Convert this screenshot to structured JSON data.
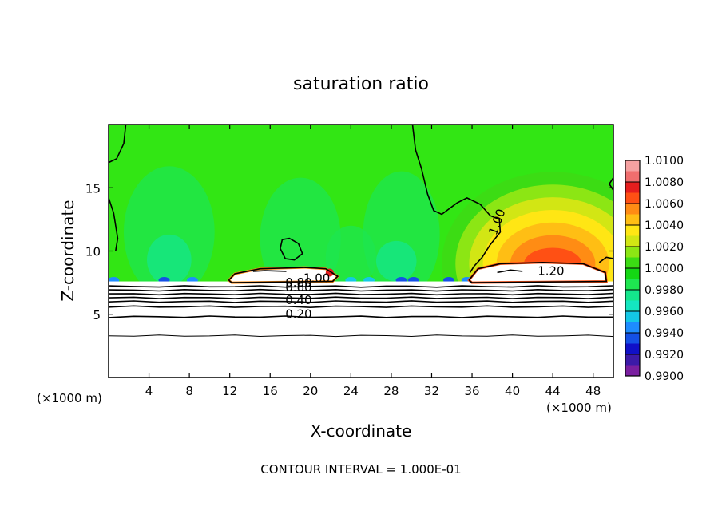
{
  "chart_data": {
    "type": "heatmap",
    "title": "saturation ratio",
    "xlabel": "X-coordinate",
    "ylabel": "Z-coordinate",
    "x_unit_left": "(×1000 m)",
    "x_unit_right": "(×1000 m)",
    "footer": "CONTOUR INTERVAL = 1.000E-01",
    "xlim": [
      0,
      50
    ],
    "ylim": [
      0,
      20
    ],
    "xticks": [
      4,
      8,
      12,
      16,
      20,
      24,
      28,
      32,
      36,
      40,
      44,
      48
    ],
    "yticks": [
      5,
      10,
      15
    ],
    "colorbar": {
      "min": 0.99,
      "max": 1.01,
      "labels": [
        "1.0100",
        "1.0080",
        "1.0060",
        "1.0040",
        "1.0020",
        "1.0000",
        "0.9980",
        "0.9960",
        "0.9940",
        "0.9920",
        "0.9900"
      ],
      "bands": [
        {
          "lo": 0.99,
          "hi": 0.991,
          "color": "#7a1fa0"
        },
        {
          "lo": 0.991,
          "hi": 0.992,
          "color": "#3c1aa8"
        },
        {
          "lo": 0.992,
          "hi": 0.993,
          "color": "#1010c8"
        },
        {
          "lo": 0.993,
          "hi": 0.994,
          "color": "#1450e6"
        },
        {
          "lo": 0.994,
          "hi": 0.995,
          "color": "#1e8cff"
        },
        {
          "lo": 0.995,
          "hi": 0.996,
          "color": "#14c8e6"
        },
        {
          "lo": 0.996,
          "hi": 0.997,
          "color": "#14e6c0"
        },
        {
          "lo": 0.997,
          "hi": 0.998,
          "color": "#14e68c"
        },
        {
          "lo": 0.998,
          "hi": 0.999,
          "color": "#1ee650"
        },
        {
          "lo": 0.999,
          "hi": 1.0,
          "color": "#14d714"
        },
        {
          "lo": 1.0,
          "hi": 1.001,
          "color": "#3cdc14"
        },
        {
          "lo": 1.001,
          "hi": 1.002,
          "color": "#8ce614"
        },
        {
          "lo": 1.002,
          "hi": 1.003,
          "color": "#d2e614"
        },
        {
          "lo": 1.003,
          "hi": 1.004,
          "color": "#ffe614"
        },
        {
          "lo": 1.004,
          "hi": 1.005,
          "color": "#ffbe14"
        },
        {
          "lo": 1.005,
          "hi": 1.006,
          "color": "#ff8c14"
        },
        {
          "lo": 1.006,
          "hi": 1.007,
          "color": "#ff5014"
        },
        {
          "lo": 1.007,
          "hi": 1.008,
          "color": "#e61e1e"
        },
        {
          "lo": 1.008,
          "hi": 1.009,
          "color": "#f06e6e"
        },
        {
          "lo": 1.009,
          "hi": 1.01,
          "color": "#f5a0a0"
        }
      ]
    },
    "contour_labels": [
      "1.00",
      "1.20",
      "0.80",
      "0.60",
      "0.40",
      "0.20",
      "1.00"
    ],
    "background_value": 1.0,
    "features": {
      "high_value_dome": {
        "x_center": 44,
        "z_base": 9,
        "z_top": 16,
        "peak": 1.0065
      },
      "low_value_patches_z": 7.7,
      "unsaturated_layer_top_z": 7.6,
      "horizontal_contours_z": [
        3.3,
        4.8,
        5.6,
        6.0,
        6.3,
        6.6,
        6.9,
        7.2
      ]
    }
  }
}
